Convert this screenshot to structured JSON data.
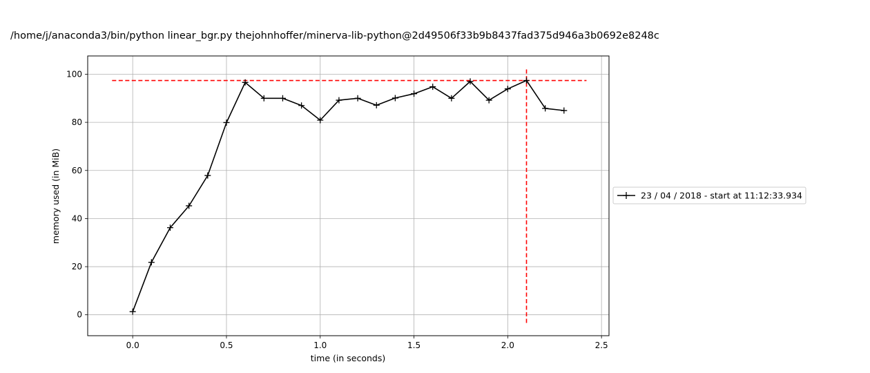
{
  "chart_data": {
    "type": "line",
    "title": "/home/j/anaconda3/bin/python linear_bgr.py thejohnhoffer/minerva-lib-python@2d49506f33b9b8437fad375d946a3b0692e8248c",
    "xlabel": "time (in seconds)",
    "ylabel": "memory used (in MiB)",
    "xlim": [
      -0.24,
      2.54
    ],
    "ylim": [
      -8.7,
      107.6
    ],
    "x_ticks": [
      0.0,
      0.5,
      1.0,
      1.5,
      2.0,
      2.5
    ],
    "x_tick_labels": [
      "0.0",
      "0.5",
      "1.0",
      "1.5",
      "2.0",
      "2.5"
    ],
    "y_ticks": [
      0,
      20,
      40,
      60,
      80,
      100
    ],
    "y_tick_labels": [
      "0",
      "20",
      "40",
      "60",
      "80",
      "100"
    ],
    "grid": true,
    "legend_position": "right",
    "series": [
      {
        "name": "23 / 04 / 2018 - start at 11:12:33.934",
        "color": "#000000",
        "marker": "plus",
        "x": [
          0.0,
          0.1,
          0.2,
          0.3,
          0.4,
          0.5,
          0.6,
          0.7,
          0.8,
          0.9,
          1.0,
          1.1,
          1.2,
          1.3,
          1.4,
          1.5,
          1.6,
          1.7,
          1.8,
          1.9,
          2.0,
          2.1,
          2.2,
          2.3
        ],
        "y": [
          1.3,
          21.8,
          36.2,
          45.3,
          57.9,
          79.9,
          96.6,
          90.0,
          90.0,
          87.0,
          80.9,
          89.2,
          90.0,
          87.1,
          90.1,
          91.9,
          94.8,
          90.0,
          97.0,
          89.2,
          93.9,
          97.4,
          85.8,
          84.9
        ]
      }
    ],
    "annotations": [
      {
        "kind": "hline",
        "y": 97.4,
        "x_from": -0.11,
        "x_to": 2.42,
        "color": "#ff0000",
        "style": "dashed"
      },
      {
        "kind": "vline",
        "x": 2.1,
        "y_from": -3.4,
        "y_to": 102.4,
        "color": "#ff0000",
        "style": "dashed"
      }
    ]
  }
}
